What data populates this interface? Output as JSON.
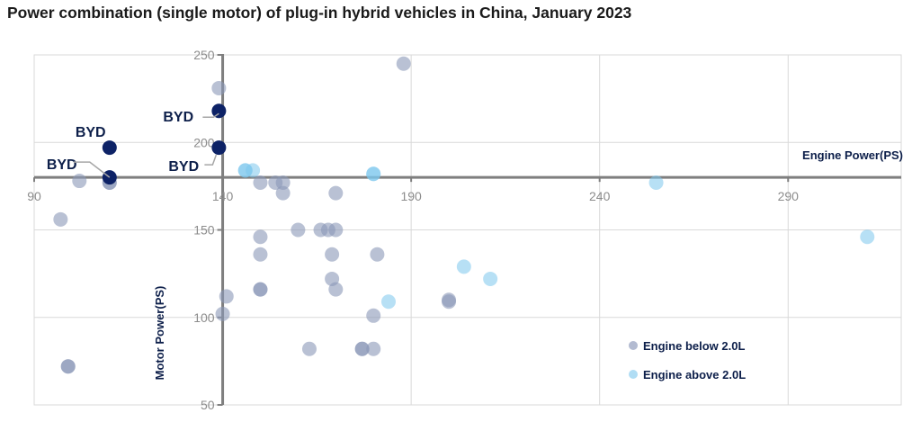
{
  "chart_data": {
    "type": "scatter",
    "title": "Power combination (single motor) of plug-in hybrid vehicles in China, January 2023",
    "xlabel": "Engine Power(PS)",
    "ylabel": "Motor Power(PS)",
    "xlim": [
      90,
      320
    ],
    "ylim": [
      50,
      250
    ],
    "x_axis_crosses_y_at": 180,
    "y_axis_crosses_x_at": 140,
    "xticks": [
      90,
      140,
      190,
      240,
      290
    ],
    "yticks": [
      50,
      100,
      150,
      200,
      250
    ],
    "grid": true,
    "legend_position": "bottom-right",
    "colors": {
      "below": "#8a97b8",
      "above": "#7cc6ec",
      "byd": "#0d2266"
    },
    "series": [
      {
        "name": "Engine below 2.0L",
        "points": [
          [
            188,
            245
          ],
          [
            139,
            231
          ],
          [
            102,
            178
          ],
          [
            110,
            177
          ],
          [
            110,
            177
          ],
          [
            97,
            156
          ],
          [
            99,
            72
          ],
          [
            99,
            72
          ],
          [
            150,
            177
          ],
          [
            154,
            177
          ],
          [
            156,
            177
          ],
          [
            156,
            171
          ],
          [
            170,
            171
          ],
          [
            150,
            146
          ],
          [
            150,
            136
          ],
          [
            150,
            116
          ],
          [
            150,
            116
          ],
          [
            141,
            112
          ],
          [
            140,
            102
          ],
          [
            160,
            150
          ],
          [
            166,
            150
          ],
          [
            168,
            150
          ],
          [
            170,
            150
          ],
          [
            169,
            136
          ],
          [
            181,
            136
          ],
          [
            169,
            122
          ],
          [
            170,
            116
          ],
          [
            163,
            82
          ],
          [
            177,
            82
          ],
          [
            177,
            82
          ],
          [
            180,
            82
          ],
          [
            180,
            101
          ],
          [
            200,
            110
          ],
          [
            200,
            109
          ]
        ]
      },
      {
        "name": "Engine above 2.0L",
        "points": [
          [
            146,
            184
          ],
          [
            148,
            184
          ],
          [
            146,
            184
          ],
          [
            180,
            182
          ],
          [
            180,
            182
          ],
          [
            255,
            177
          ],
          [
            311,
            146
          ],
          [
            184,
            109
          ],
          [
            204,
            129
          ],
          [
            211,
            122
          ]
        ]
      },
      {
        "name": "BYD",
        "points": [
          [
            139,
            218
          ],
          [
            139,
            197
          ],
          [
            110,
            197
          ],
          [
            110,
            180
          ]
        ]
      }
    ],
    "annotations": [
      {
        "text": "BYD",
        "x": 139,
        "y": 218
      },
      {
        "text": "BYD",
        "x": 139,
        "y": 197
      },
      {
        "text": "BYD",
        "x": 110,
        "y": 197
      },
      {
        "text": "BYD",
        "x": 110,
        "y": 180
      }
    ]
  }
}
